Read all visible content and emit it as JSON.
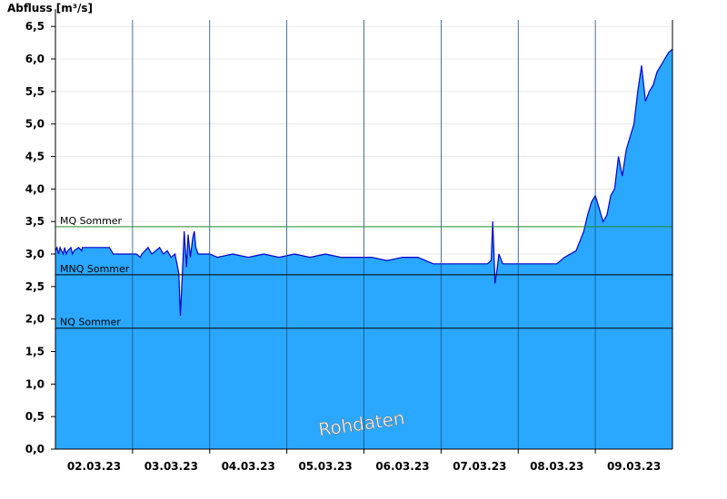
{
  "chart_data": {
    "type": "area",
    "ylabel": "Abfluss [m³/s]",
    "ylim": [
      0,
      6.6
    ],
    "yticks": [
      "0,0",
      "0,5",
      "1,0",
      "1,5",
      "2,0",
      "2,5",
      "3,0",
      "3,5",
      "4,0",
      "4,5",
      "5,0",
      "5,5",
      "6,0",
      "6,5"
    ],
    "xlim": [
      1.5,
      9.5
    ],
    "xticks": [
      {
        "x": 2,
        "label": "02.03.23"
      },
      {
        "x": 3,
        "label": "03.03.23"
      },
      {
        "x": 4,
        "label": "04.03.23"
      },
      {
        "x": 5,
        "label": "05.03.23"
      },
      {
        "x": 6,
        "label": "06.03.23"
      },
      {
        "x": 7,
        "label": "07.03.23"
      },
      {
        "x": 8,
        "label": "08.03.23"
      },
      {
        "x": 9,
        "label": "09.03.23"
      }
    ],
    "day_boundaries": [
      2.5,
      3.5,
      4.5,
      5.5,
      6.5,
      7.5,
      8.5
    ],
    "reference_lines": [
      {
        "name": "MQ Sommer",
        "value": 3.42,
        "color": "#228b22"
      },
      {
        "name": "MNQ Sommer",
        "value": 2.68,
        "color": "#000000"
      },
      {
        "name": "NQ Sommer",
        "value": 1.86,
        "color": "#000000"
      }
    ],
    "watermark": "Rohdaten",
    "fill_color": "#2aa8ff",
    "line_color": "#0000cc",
    "series": [
      {
        "x": [
          1.5,
          1.52,
          1.54,
          1.56,
          1.58,
          1.6,
          1.62,
          1.64,
          1.66,
          1.7,
          1.72,
          1.74,
          1.8,
          1.84,
          1.85,
          2.05,
          2.2,
          2.25,
          2.5,
          2.55,
          2.6,
          2.62,
          2.66,
          2.7,
          2.75,
          2.8,
          2.85,
          2.9,
          2.95,
          3.0,
          3.05,
          3.1,
          3.12,
          3.15,
          3.17,
          3.2,
          3.22,
          3.25,
          3.28,
          3.3,
          3.32,
          3.35,
          3.4,
          3.45,
          3.5,
          3.6,
          3.8,
          4.0,
          4.2,
          4.4,
          4.6,
          4.8,
          5.0,
          5.2,
          5.4,
          5.6,
          5.8,
          6.0,
          6.2,
          6.4,
          6.6,
          6.8,
          7.0,
          7.1,
          7.15,
          7.17,
          7.2,
          7.23,
          7.25,
          7.3,
          7.5,
          7.8,
          8.0,
          8.1,
          8.25,
          8.3,
          8.35,
          8.4,
          8.45,
          8.5,
          8.55,
          8.6,
          8.65,
          8.7,
          8.75,
          8.8,
          8.85,
          8.9,
          8.95,
          9.0,
          9.05,
          9.1,
          9.15,
          9.2,
          9.25,
          9.3,
          9.35,
          9.4,
          9.45,
          9.5
        ],
        "values": [
          3.05,
          3.1,
          3.0,
          3.1,
          3.05,
          3.0,
          3.1,
          3.0,
          3.05,
          3.1,
          3.0,
          3.05,
          3.1,
          3.05,
          3.1,
          3.1,
          3.1,
          3.0,
          3.0,
          3.0,
          2.95,
          3.0,
          3.05,
          3.1,
          3.0,
          3.05,
          3.1,
          3.0,
          3.05,
          2.95,
          3.0,
          2.7,
          2.05,
          2.8,
          3.35,
          2.8,
          3.3,
          2.95,
          3.25,
          3.35,
          3.1,
          3.0,
          3.0,
          3.0,
          3.0,
          2.95,
          3.0,
          2.95,
          3.0,
          2.95,
          3.0,
          2.95,
          3.0,
          2.95,
          2.95,
          2.95,
          2.9,
          2.95,
          2.95,
          2.85,
          2.85,
          2.85,
          2.85,
          2.85,
          2.9,
          3.5,
          2.55,
          2.8,
          3.0,
          2.85,
          2.85,
          2.85,
          2.85,
          2.95,
          3.05,
          3.2,
          3.35,
          3.6,
          3.8,
          3.9,
          3.7,
          3.5,
          3.6,
          3.9,
          4.0,
          4.5,
          4.2,
          4.6,
          4.8,
          5.0,
          5.5,
          5.9,
          5.35,
          5.5,
          5.6,
          5.8,
          5.9,
          6.0,
          6.1,
          6.15
        ]
      }
    ]
  }
}
